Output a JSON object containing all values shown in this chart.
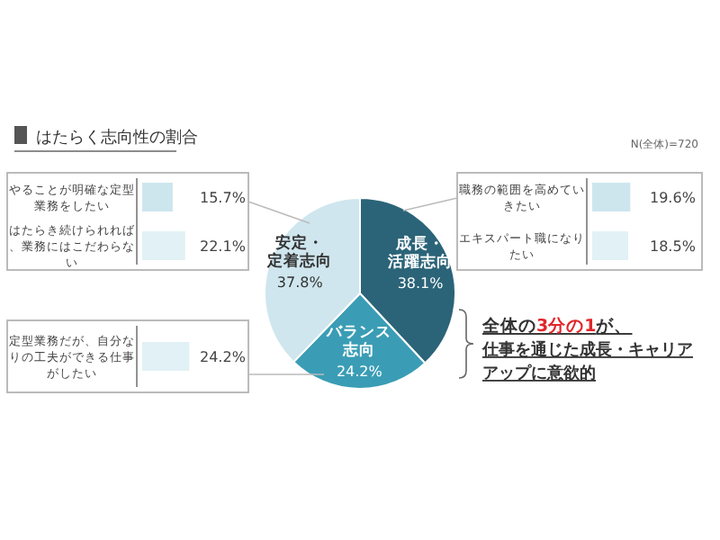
{
  "chart_data": [
    {
      "type": "pie",
      "title": "はたらく志向性の割合",
      "categories": [
        "成長・活躍志向",
        "バランス志向",
        "安定・定着志向"
      ],
      "values": [
        38.1,
        24.2,
        37.8
      ],
      "value_labels": [
        "38.1%",
        "24.2%",
        "37.8%"
      ],
      "colors": [
        "#2b6478",
        "#3a9db5",
        "#cfe6ee"
      ],
      "annotations": [
        "全体の",
        "3分の1",
        "が、",
        "仕事を通じた成長・キャリアアップに意欲的"
      ]
    },
    {
      "type": "bar",
      "orientation": "horizontal",
      "categories": [
        "やることが明確な定型業務をしたい",
        "はたらき続けられれば、業務にはこだわらない"
      ],
      "values": [
        15.7,
        22.1
      ],
      "value_labels": [
        "15.7%",
        "22.1%"
      ],
      "colors": [
        "#cde6ee",
        "#e2f1f5"
      ]
    },
    {
      "type": "bar",
      "orientation": "horizontal",
      "annotations": [
        "N(全体)=720"
      ],
      "categories": [
        "職務の範囲を高めていきたい",
        "エキスパート職になりたい"
      ],
      "values": [
        19.6,
        18.5
      ],
      "value_labels": [
        "19.6%",
        "18.5%"
      ],
      "colors": [
        "#cde6ee",
        "#e2f1f5"
      ]
    },
    {
      "type": "bar",
      "orientation": "horizontal",
      "categories": [
        "定型業務だが、自分なりの工夫ができる仕事がしたい"
      ],
      "values": [
        24.2
      ],
      "value_labels": [
        "24.2%"
      ],
      "colors": [
        "#e2f1f5"
      ]
    }
  ]
}
